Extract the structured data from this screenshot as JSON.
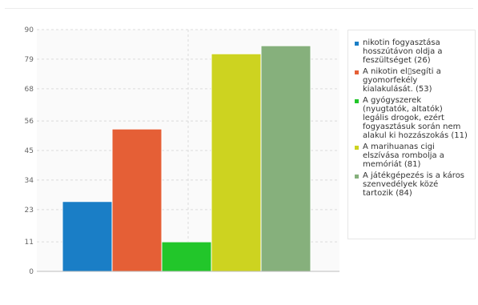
{
  "chart_data": {
    "type": "bar",
    "categories": [
      "nikotin fogyasztása hosszútávon oldja a feszültséget",
      "A nikotin el▯segíti a gyomorfekély kialakulását.",
      "A gyógyszerek (nyugtatók, altatók) legális drogok, ezért fogyasztásuk során nem alakul ki hozzászokás",
      "A marihuanas cigi elszívása rombolja a memóriát",
      "A játékgépezés is a káros szenvedélyek közé tartozik"
    ],
    "values": [
      26,
      53,
      11,
      81,
      84
    ],
    "colors": [
      "#1a7ec6",
      "#e55f36",
      "#22c62a",
      "#cdd320",
      "#86b07c"
    ],
    "y_ticks": [
      0,
      11,
      23,
      34,
      45,
      56,
      68,
      79,
      90
    ],
    "ylim": [
      0,
      90
    ],
    "grid": true,
    "legend_position": "right"
  },
  "legend": [
    "nikotin fogyasztása hosszútávon oldja a feszültséget (26)",
    "A nikotin el▯segíti a gyomorfekély kialakulását. (53)",
    "A gyógyszerek (nyugtatók, altatók) legális drogok, ezért fogyasztásuk során nem alakul ki hozzászokás (11)",
    "A marihuanas cigi elszívása rombolja a memóriát (81)",
    "A játékgépezés is a káros szenvedélyek közé tartozik (84)"
  ]
}
